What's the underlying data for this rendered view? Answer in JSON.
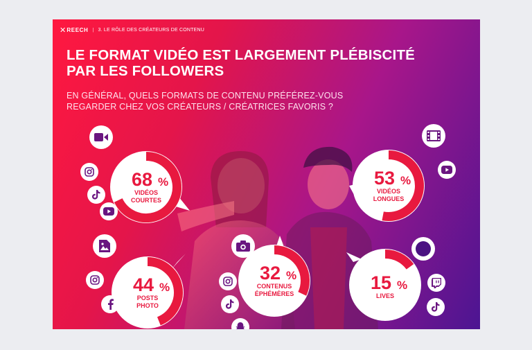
{
  "header": {
    "brand": "REECH",
    "section": "3. LE RÔLE DES CRÉATEURS DE CONTENU"
  },
  "title_line1": "LE FORMAT VIDÉO EST LARGEMENT PLÉBISCITÉ",
  "title_line2": "PAR LES FOLLOWERS",
  "subtitle_line1": "EN GÉNÉRAL, QUELS FORMATS DE CONTENU PRÉFÉREZ-VOUS",
  "subtitle_line2": "REGARDER CHEZ VOS CRÉATEURS / CRÉATRICES FAVORIS ?",
  "colors": {
    "accent": "#e8193f",
    "track": "#ffffff",
    "text": "#e8193f"
  },
  "chart_data": {
    "type": "pie",
    "unit": "%",
    "max": 100,
    "items": [
      {
        "value": 68,
        "label_line1": "VIDÉOS",
        "label_line2": "COURTES",
        "icons": [
          "video-camera-icon",
          "instagram-icon",
          "tiktok-icon",
          "youtube-icon"
        ]
      },
      {
        "value": 53,
        "label_line1": "VIDÉOS",
        "label_line2": "LONGUES",
        "icons": [
          "film-icon",
          "youtube-icon"
        ]
      },
      {
        "value": 44,
        "label_line1": "POSTS",
        "label_line2": "PHOTO",
        "icons": [
          "image-icon",
          "instagram-icon",
          "facebook-icon"
        ]
      },
      {
        "value": 32,
        "label_line1": "CONTENUS",
        "label_line2": "ÉPHÉMÈRES",
        "icons": [
          "camera-icon",
          "instagram-icon",
          "tiktok-icon",
          "snapchat-icon"
        ]
      },
      {
        "value": 15,
        "label_line1": "LIVES",
        "label_line2": "",
        "icons": [
          "record-icon",
          "twitch-icon",
          "tiktok-icon"
        ]
      }
    ]
  }
}
